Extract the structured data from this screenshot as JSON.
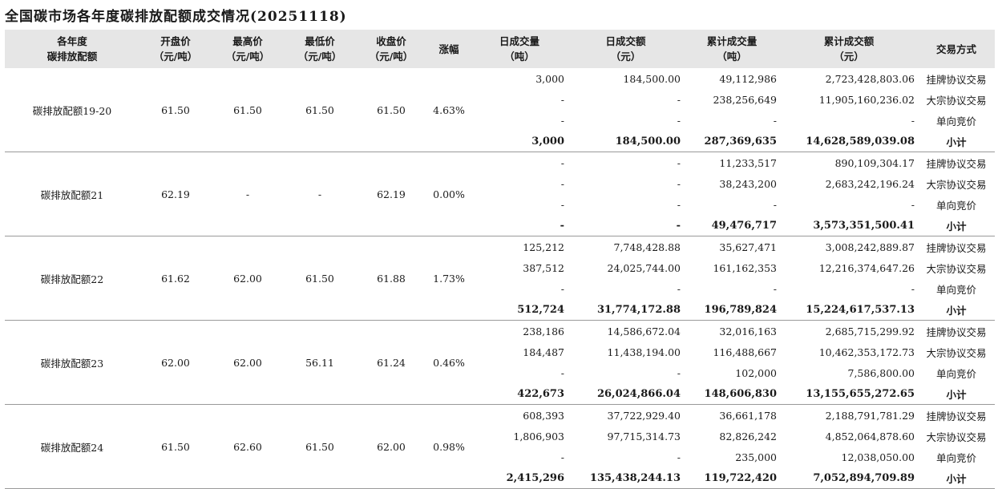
{
  "title": "全国碳市场各年度碳排放配额成交情况(20251118)",
  "headers": [
    [
      "各年度",
      "碳排放配额"
    ],
    [
      "开盘价",
      "（元/吨）"
    ],
    [
      "最高价",
      "（元/吨）"
    ],
    [
      "最低价",
      "（元/吨）"
    ],
    [
      "收盘价",
      "（元/吨）"
    ],
    [
      "涨幅",
      ""
    ],
    [
      "日成交量",
      "（吨）"
    ],
    [
      "日成交额",
      "（元）"
    ],
    [
      "累计成交量",
      "（吨）"
    ],
    [
      "累计成交额",
      "（元）"
    ],
    [
      "交易方式",
      ""
    ]
  ],
  "groups": [
    {
      "name": "碳排放配额19-20",
      "open": "61.50",
      "high": "61.50",
      "low": "61.50",
      "close": "61.50",
      "change": "4.63%",
      "rows": [
        {
          "dv": "3,000",
          "da": "184,500.00",
          "cv": "49,112,986",
          "ca": "2,723,428,803.06",
          "mode": "挂牌协议交易"
        },
        {
          "dv": "-",
          "da": "-",
          "cv": "238,256,649",
          "ca": "11,905,160,236.02",
          "mode": "大宗协议交易"
        },
        {
          "dv": "-",
          "da": "-",
          "cv": "-",
          "ca": "-",
          "mode": "单向竞价"
        },
        {
          "dv": "3,000",
          "da": "184,500.00",
          "cv": "287,369,635",
          "ca": "14,628,589,039.08",
          "mode": "小计"
        }
      ]
    },
    {
      "name": "碳排放配额21",
      "open": "62.19",
      "high": "-",
      "low": "-",
      "close": "62.19",
      "change": "0.00%",
      "rows": [
        {
          "dv": "-",
          "da": "-",
          "cv": "11,233,517",
          "ca": "890,109,304.17",
          "mode": "挂牌协议交易"
        },
        {
          "dv": "-",
          "da": "-",
          "cv": "38,243,200",
          "ca": "2,683,242,196.24",
          "mode": "大宗协议交易"
        },
        {
          "dv": "-",
          "da": "-",
          "cv": "-",
          "ca": "-",
          "mode": "单向竞价"
        },
        {
          "dv": "-",
          "da": "-",
          "cv": "49,476,717",
          "ca": "3,573,351,500.41",
          "mode": "小计"
        }
      ]
    },
    {
      "name": "碳排放配额22",
      "open": "61.62",
      "high": "62.00",
      "low": "61.50",
      "close": "61.88",
      "change": "1.73%",
      "rows": [
        {
          "dv": "125,212",
          "da": "7,748,428.88",
          "cv": "35,627,471",
          "ca": "3,008,242,889.87",
          "mode": "挂牌协议交易"
        },
        {
          "dv": "387,512",
          "da": "24,025,744.00",
          "cv": "161,162,353",
          "ca": "12,216,374,647.26",
          "mode": "大宗协议交易"
        },
        {
          "dv": "-",
          "da": "-",
          "cv": "-",
          "ca": "-",
          "mode": "单向竞价"
        },
        {
          "dv": "512,724",
          "da": "31,774,172.88",
          "cv": "196,789,824",
          "ca": "15,224,617,537.13",
          "mode": "小计"
        }
      ]
    },
    {
      "name": "碳排放配额23",
      "open": "62.00",
      "high": "62.00",
      "low": "56.11",
      "close": "61.24",
      "change": "0.46%",
      "rows": [
        {
          "dv": "238,186",
          "da": "14,586,672.04",
          "cv": "32,016,163",
          "ca": "2,685,715,299.92",
          "mode": "挂牌协议交易"
        },
        {
          "dv": "184,487",
          "da": "11,438,194.00",
          "cv": "116,488,667",
          "ca": "10,462,353,172.73",
          "mode": "大宗协议交易"
        },
        {
          "dv": "-",
          "da": "-",
          "cv": "102,000",
          "ca": "7,586,800.00",
          "mode": "单向竞价"
        },
        {
          "dv": "422,673",
          "da": "26,024,866.04",
          "cv": "148,606,830",
          "ca": "13,155,655,272.65",
          "mode": "小计"
        }
      ]
    },
    {
      "name": "碳排放配额24",
      "open": "61.50",
      "high": "62.60",
      "low": "61.50",
      "close": "62.00",
      "change": "0.98%",
      "rows": [
        {
          "dv": "608,393",
          "da": "37,722,929.40",
          "cv": "36,661,178",
          "ca": "2,188,791,781.29",
          "mode": "挂牌协议交易"
        },
        {
          "dv": "1,806,903",
          "da": "97,715,314.73",
          "cv": "82,826,242",
          "ca": "4,852,064,878.60",
          "mode": "大宗协议交易"
        },
        {
          "dv": "-",
          "da": "-",
          "cv": "235,000",
          "ca": "12,038,050.00",
          "mode": "单向竞价"
        },
        {
          "dv": "2,415,296",
          "da": "135,438,244.13",
          "cv": "119,722,420",
          "ca": "7,052,894,709.89",
          "mode": "小计"
        }
      ]
    }
  ]
}
